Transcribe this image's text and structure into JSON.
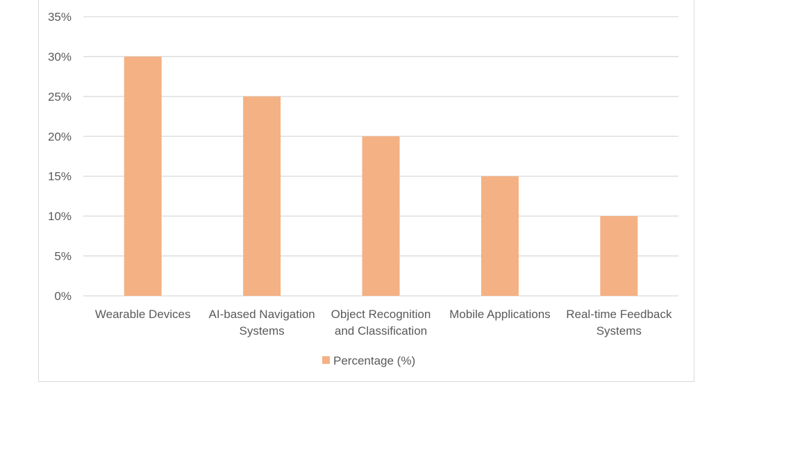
{
  "chart_data": {
    "type": "bar",
    "categories": [
      [
        "Wearable Devices"
      ],
      [
        "AI-based Navigation",
        "Systems"
      ],
      [
        "Object Recognition",
        "and Classification"
      ],
      [
        "Mobile Applications"
      ],
      [
        "Real-time Feedback",
        "Systems"
      ]
    ],
    "series": [
      {
        "name": "Percentage (%)",
        "values": [
          30,
          25,
          20,
          15,
          10
        ],
        "color": "#f4b183"
      }
    ],
    "ylim": [
      0,
      35
    ],
    "yticks": [
      0,
      5,
      10,
      15,
      20,
      25,
      30,
      35
    ],
    "ytick_format": "{v}%",
    "grid": true,
    "gridline_color": "#d9d9d9",
    "legend_position": "bottom"
  }
}
